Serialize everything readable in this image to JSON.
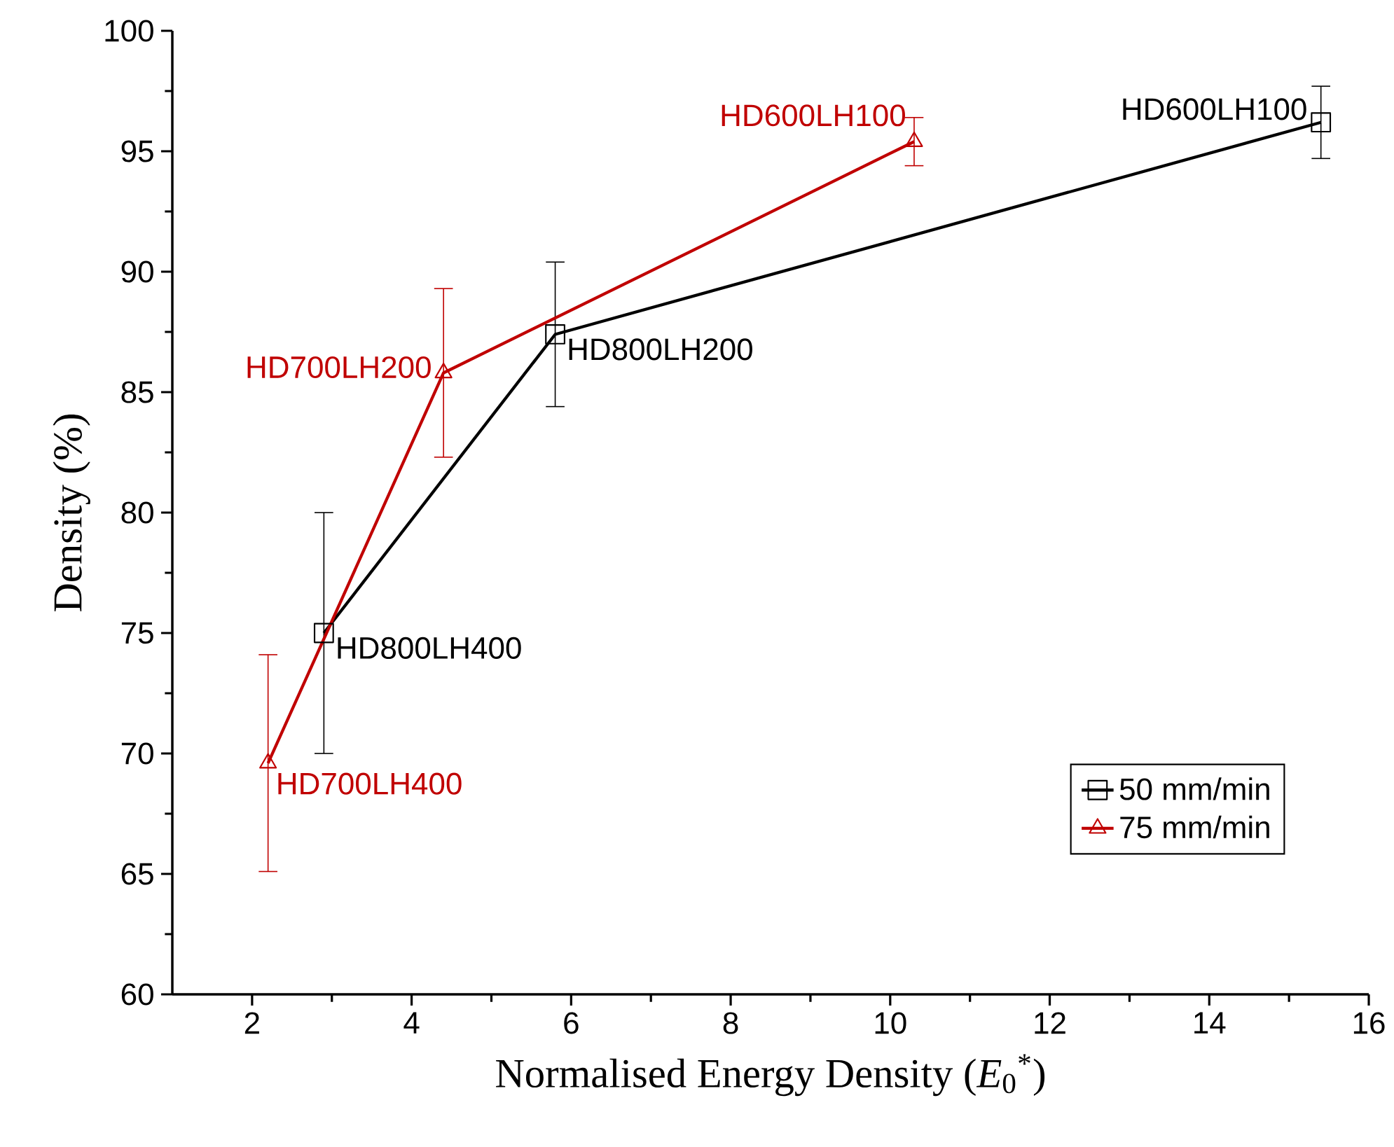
{
  "chart_data": {
    "type": "line",
    "xlabel": "Normalised Energy Density  (*E*$_{0}$$^{*}$)",
    "ylabel": "Density (%)",
    "xlim": [
      1,
      16
    ],
    "xticks": [
      2,
      4,
      6,
      8,
      10,
      12,
      14,
      16
    ],
    "ylim": [
      60,
      100
    ],
    "yticks": [
      60,
      65,
      70,
      75,
      80,
      85,
      90,
      95,
      100
    ],
    "legend": "bottom right",
    "series": [
      {
        "name": "50 mm/min",
        "color": "#000000",
        "marker": "square",
        "x": [
          2.9,
          5.8,
          15.4
        ],
        "values": [
          75,
          87.4,
          96.2
        ],
        "errors": [
          5,
          3,
          1.5
        ]
      },
      {
        "name": "75 mm/min",
        "color": "#c00000",
        "marker": "triangle",
        "x": [
          2.2,
          4.4,
          10.3
        ],
        "values": [
          69.6,
          85.8,
          95.4
        ],
        "errors": [
          4.5,
          3.5,
          1
        ]
      }
    ],
    "annotations": [
      {
        "text": "HD800LH400",
        "x": 2.9,
        "y": 75
      },
      {
        "text": "HD800LH200",
        "x": 5.8,
        "y": 87.4
      },
      {
        "text": "HD600LH100",
        "x": 15.4,
        "y": 96.2
      },
      {
        "text": "HD700LH400",
        "x": 2.2,
        "y": 69.6
      },
      {
        "text": "HD700LH200",
        "x": 4.4,
        "y": 85.8
      },
      {
        "text": "HD600LH100",
        "x": 10.3,
        "y": 95.4
      }
    ]
  }
}
